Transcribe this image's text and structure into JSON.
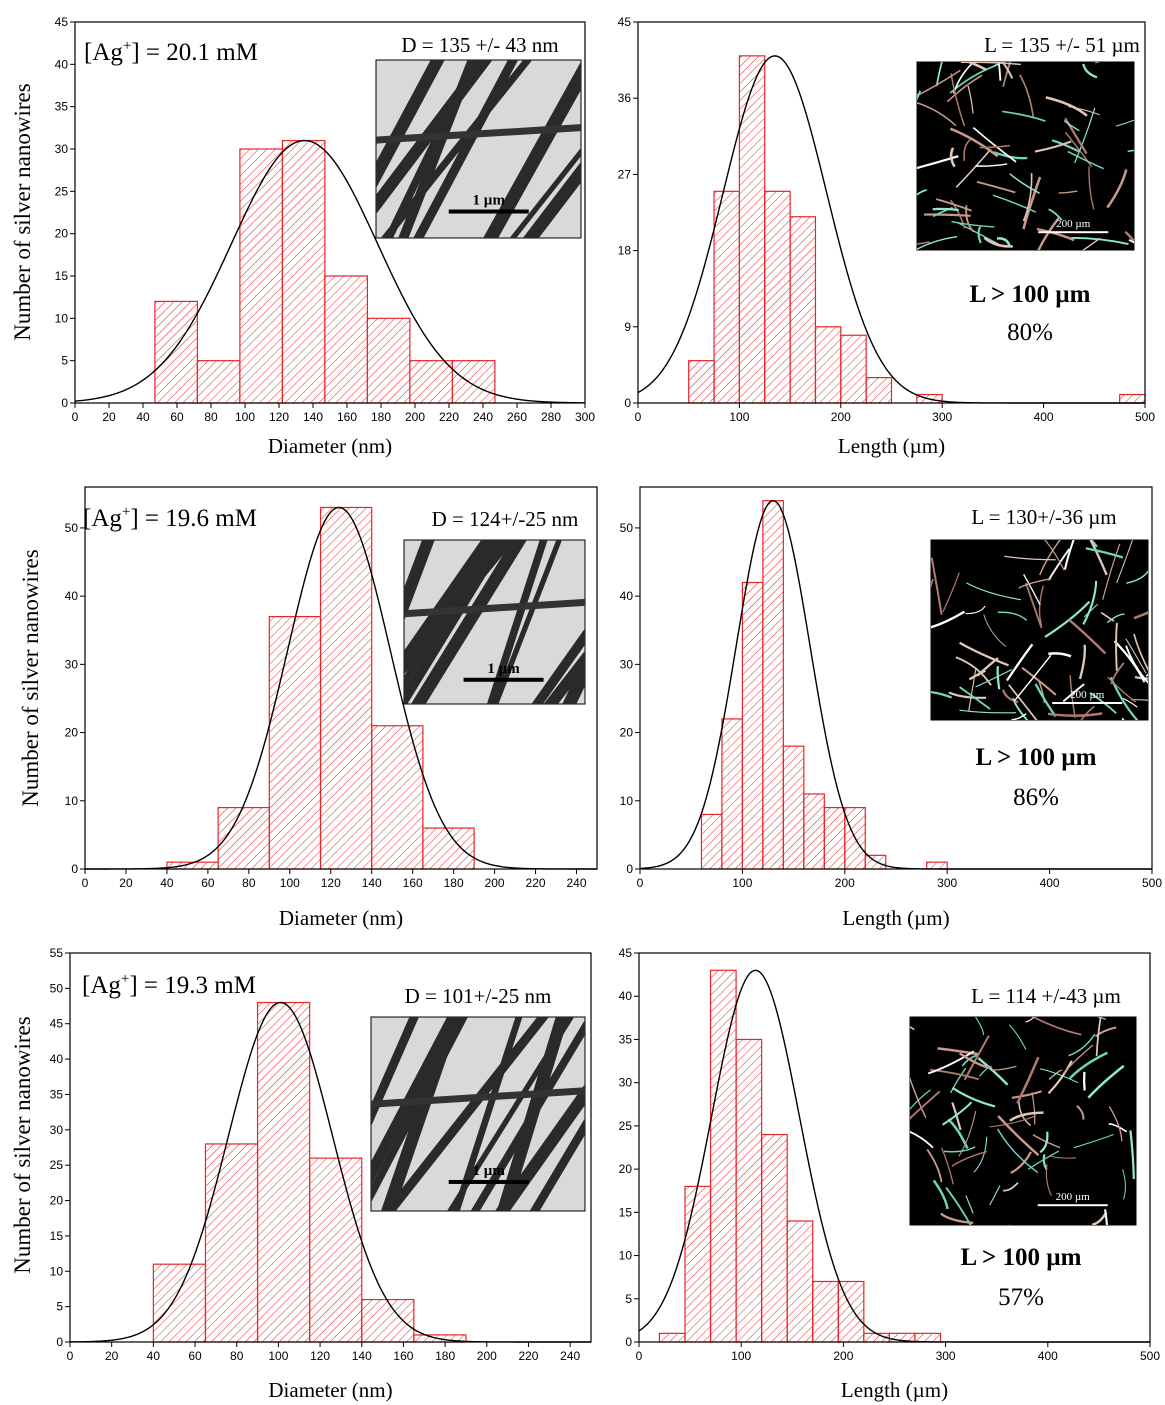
{
  "ylabel": "Number of silver nanowires",
  "colors": {
    "bar": "#e8262a",
    "curve": "#000000",
    "axis": "#000000"
  },
  "chart_data": [
    {
      "type": "bar",
      "xlabel": "Diameter (nm)",
      "xlim": [
        0,
        300
      ],
      "xticks": [
        0,
        20,
        40,
        60,
        80,
        100,
        120,
        140,
        160,
        180,
        200,
        220,
        240,
        260,
        280,
        300
      ],
      "ylim": [
        0,
        45
      ],
      "yticks": [
        0,
        5,
        10,
        15,
        20,
        25,
        30,
        35,
        40,
        45
      ],
      "bins": [
        [
          47,
          72,
          12
        ],
        [
          72,
          97,
          5
        ],
        [
          97,
          122,
          30
        ],
        [
          122,
          147,
          31
        ],
        [
          147,
          172,
          15
        ],
        [
          172,
          197,
          10
        ],
        [
          197,
          222,
          5
        ],
        [
          222,
          247,
          5
        ]
      ],
      "fit": {
        "mean": 135,
        "sd": 43,
        "peak": 31
      },
      "conc_prefix": "[Ag",
      "conc_sup": "+",
      "conc_suffix": "] = 20.1 mM",
      "stat": "D = 135 +/- 43 nm",
      "inset": {
        "kind": "tem",
        "scale": "1 µm"
      }
    },
    {
      "type": "bar",
      "xlabel": "Length (µm)",
      "xlim": [
        0,
        500
      ],
      "xticks": [
        0,
        100,
        200,
        300,
        400,
        500
      ],
      "ylim": [
        0,
        45
      ],
      "yticks": [
        0,
        9,
        18,
        27,
        36,
        45
      ],
      "bins": [
        [
          50,
          75,
          5
        ],
        [
          75,
          100,
          25
        ],
        [
          100,
          125,
          41
        ],
        [
          125,
          150,
          25
        ],
        [
          150,
          175,
          22
        ],
        [
          175,
          200,
          9
        ],
        [
          200,
          225,
          8
        ],
        [
          225,
          250,
          3
        ],
        [
          275,
          300,
          1
        ],
        [
          475,
          500,
          1
        ]
      ],
      "fit": {
        "mean": 135,
        "sd": 51,
        "peak": 41
      },
      "stat": "L = 135 +/- 51 µm",
      "inset": {
        "kind": "opt",
        "scale": "200 µm"
      },
      "threshold": "L > 100 µm",
      "percent": "80%"
    },
    {
      "type": "bar",
      "xlabel": "Diameter (nm)",
      "xlim": [
        0,
        250
      ],
      "xticks": [
        0,
        20,
        40,
        60,
        80,
        100,
        120,
        140,
        160,
        180,
        200,
        220,
        240
      ],
      "ylim": [
        0,
        56
      ],
      "yticks": [
        0,
        10,
        20,
        30,
        40,
        50
      ],
      "bins": [
        [
          40,
          65,
          1
        ],
        [
          65,
          90,
          9
        ],
        [
          90,
          115,
          37
        ],
        [
          115,
          140,
          53
        ],
        [
          140,
          165,
          21
        ],
        [
          165,
          190,
          6
        ]
      ],
      "fit": {
        "mean": 124,
        "sd": 25,
        "peak": 53
      },
      "conc_prefix": "[Ag",
      "conc_sup": "+",
      "conc_suffix": "] = 19.6 mM",
      "stat": "D = 124+/-25 nm",
      "inset": {
        "kind": "tem",
        "scale": "1 µm"
      }
    },
    {
      "type": "bar",
      "xlabel": "Length (µm)",
      "xlim": [
        0,
        500
      ],
      "xticks": [
        0,
        100,
        200,
        300,
        400,
        500
      ],
      "ylim": [
        0,
        56
      ],
      "yticks": [
        0,
        10,
        20,
        30,
        40,
        50
      ],
      "bins": [
        [
          60,
          80,
          8
        ],
        [
          80,
          100,
          22
        ],
        [
          100,
          120,
          42
        ],
        [
          120,
          140,
          54
        ],
        [
          140,
          160,
          18
        ],
        [
          160,
          180,
          11
        ],
        [
          180,
          200,
          9
        ],
        [
          200,
          220,
          9
        ],
        [
          220,
          240,
          2
        ],
        [
          280,
          300,
          1
        ]
      ],
      "fit": {
        "mean": 130,
        "sd": 36,
        "peak": 54
      },
      "stat": "L = 130+/-36 µm",
      "inset": {
        "kind": "opt",
        "scale": "200 µm"
      },
      "threshold": "L > 100 µm",
      "percent": "86%"
    },
    {
      "type": "bar",
      "xlabel": "Diameter (nm)",
      "xlim": [
        0,
        250
      ],
      "xticks": [
        0,
        20,
        40,
        60,
        80,
        100,
        120,
        140,
        160,
        180,
        200,
        220,
        240
      ],
      "ylim": [
        0,
        55
      ],
      "yticks": [
        0,
        5,
        10,
        15,
        20,
        25,
        30,
        35,
        40,
        45,
        50,
        55
      ],
      "bins": [
        [
          40,
          65,
          11
        ],
        [
          65,
          90,
          28
        ],
        [
          90,
          115,
          48
        ],
        [
          115,
          140,
          26
        ],
        [
          140,
          165,
          6
        ],
        [
          165,
          190,
          1
        ]
      ],
      "fit": {
        "mean": 101,
        "sd": 25,
        "peak": 48
      },
      "conc_prefix": "[Ag",
      "conc_sup": "+",
      "conc_suffix": "] = 19.3 mM",
      "stat": "D = 101+/-25 nm",
      "inset": {
        "kind": "tem",
        "scale": "1 µm"
      }
    },
    {
      "type": "bar",
      "xlabel": "Length (µm)",
      "xlim": [
        0,
        500
      ],
      "xticks": [
        0,
        100,
        200,
        300,
        400,
        500
      ],
      "ylim": [
        0,
        45
      ],
      "yticks": [
        0,
        5,
        10,
        15,
        20,
        25,
        30,
        35,
        40,
        45
      ],
      "bins": [
        [
          20,
          45,
          1
        ],
        [
          45,
          70,
          18
        ],
        [
          70,
          95,
          43
        ],
        [
          95,
          120,
          35
        ],
        [
          120,
          145,
          24
        ],
        [
          145,
          170,
          14
        ],
        [
          170,
          195,
          7
        ],
        [
          195,
          220,
          7
        ],
        [
          220,
          245,
          1
        ],
        [
          245,
          270,
          1
        ],
        [
          270,
          295,
          1
        ]
      ],
      "fit": {
        "mean": 114,
        "sd": 43,
        "peak": 43
      },
      "stat": "L = 114 +/-43 µm",
      "inset": {
        "kind": "opt",
        "scale": "200 µm"
      },
      "threshold": "L > 100 µm",
      "percent": "57%"
    }
  ]
}
